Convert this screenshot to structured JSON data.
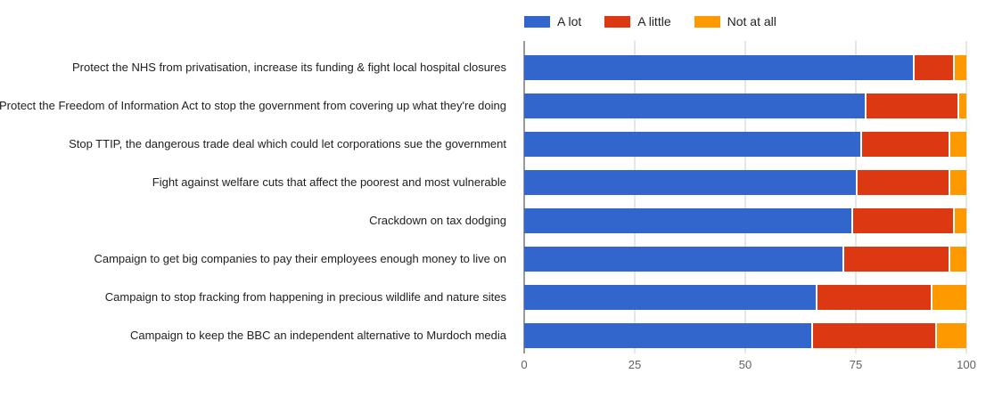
{
  "chart_data": {
    "type": "bar",
    "orientation": "horizontal",
    "stacked": true,
    "title": "",
    "xlabel": "",
    "ylabel": "",
    "legend_position": "top",
    "grid": true,
    "categories": [
      "Protect the NHS from privatisation, increase its funding & fight local hospital closures",
      "Protect the Freedom of Information Act to stop the government from covering up what they're doing",
      "Stop TTIP, the dangerous trade deal which could let corporations sue the government",
      "Fight against welfare cuts that affect the poorest and most vulnerable",
      "Crackdown on tax dodging",
      "Campaign to get big companies to pay their employees enough money to live on",
      "Campaign to stop fracking from happening in precious wildlife and nature sites",
      "Campaign to keep the BBC an independent alternative to Murdoch media"
    ],
    "series": [
      {
        "name": "A lot",
        "color": "#3366cc",
        "values": [
          88,
          77,
          76,
          75,
          74,
          72,
          66,
          65
        ]
      },
      {
        "name": "A little",
        "color": "#dc3912",
        "values": [
          9,
          21,
          20,
          21,
          23,
          24,
          26,
          28
        ]
      },
      {
        "name": "Not at all",
        "color": "#ff9900",
        "values": [
          3,
          2,
          4,
          4,
          3,
          4,
          8,
          7
        ]
      }
    ],
    "x_axis": {
      "min": 0,
      "max": 100,
      "ticks": [
        0,
        25,
        50,
        75,
        100
      ]
    },
    "colors": {
      "gridline": "#cccccc",
      "axis_baseline": "#333333",
      "category_text": "#212121",
      "tick_text": "#616161"
    }
  }
}
